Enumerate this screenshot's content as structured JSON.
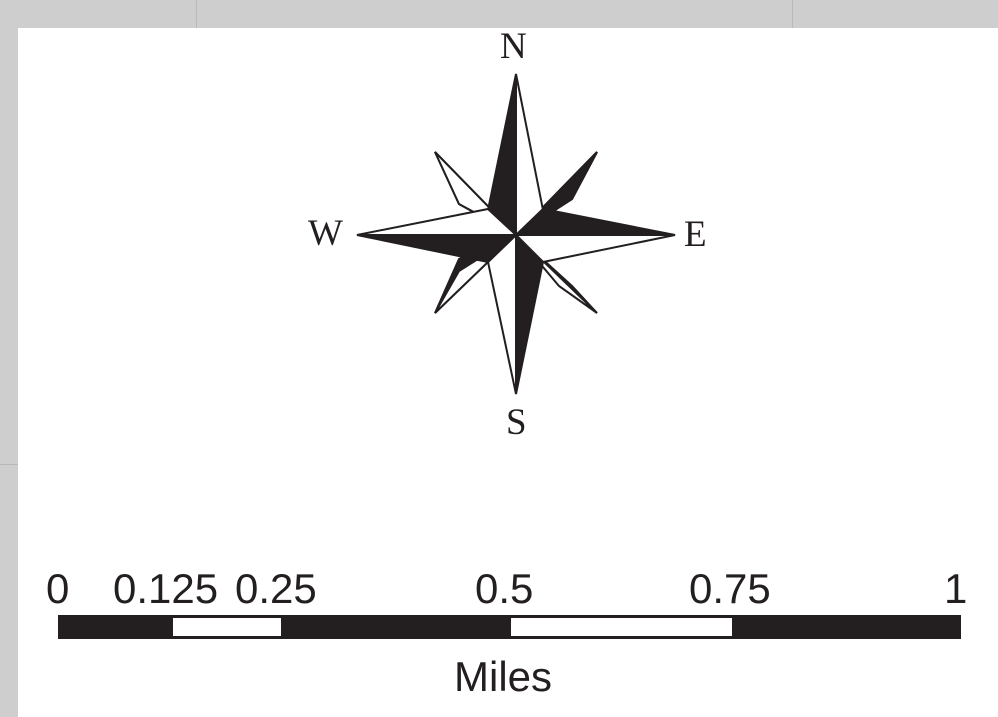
{
  "compass": {
    "north": "N",
    "east": "E",
    "south": "S",
    "west": "W"
  },
  "scale_bar": {
    "ticks": [
      "0",
      "0.125",
      "0.25",
      "0.5",
      "0.75",
      "1"
    ],
    "units": "Miles"
  },
  "colors": {
    "ink": "#231f20",
    "paper": "#ffffff",
    "background": "#cecece"
  }
}
